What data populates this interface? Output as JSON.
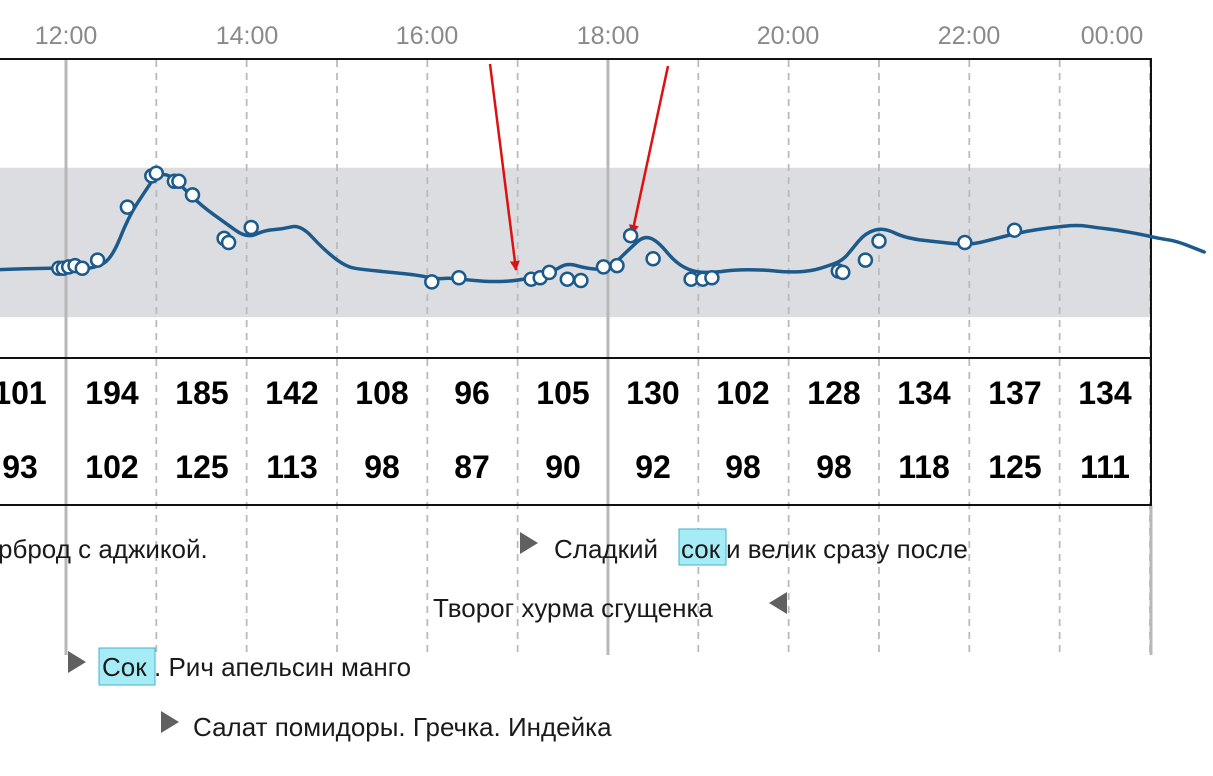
{
  "chart_data": {
    "type": "line",
    "xlabel": "",
    "ylabel": "",
    "x_axis": {
      "ticks": [
        "12:00",
        "14:00",
        "16:00",
        "18:00",
        "20:00",
        "22:00",
        "00:00"
      ],
      "range_hours": [
        11.25,
        24.6
      ]
    },
    "y_range": [
      40,
      260
    ],
    "target_range": [
      70,
      180
    ],
    "grid": true,
    "series": [
      {
        "x": [
          11.25,
          11.7,
          11.95,
          12.15,
          12.3,
          12.5,
          12.7,
          12.9,
          13.0,
          13.15,
          13.3,
          13.5,
          13.75,
          14.0,
          14.2,
          14.4,
          14.6,
          14.85,
          15.1,
          15.3,
          15.6,
          15.9,
          16.1,
          16.25,
          16.5,
          16.75,
          17.0,
          17.2,
          17.4,
          17.55,
          17.75,
          17.95,
          18.05,
          18.25,
          18.4,
          18.55,
          18.75,
          18.95,
          19.2,
          19.4,
          19.7,
          20.0,
          20.25,
          20.45,
          20.6,
          20.7,
          20.85,
          21.05,
          21.3,
          21.7,
          22.0,
          22.3,
          22.6,
          22.9,
          23.2,
          23.4,
          23.65,
          23.9,
          24.1,
          24.3,
          24.6
        ],
        "y": [
          105,
          106,
          106,
          106,
          106,
          112,
          145,
          165,
          175,
          175,
          165,
          152,
          140,
          128,
          134,
          135,
          138,
          120,
          107,
          105,
          103,
          101,
          98,
          99,
          97,
          96,
          97,
          100,
          104,
          110,
          106,
          105,
          108,
          121,
          130,
          126,
          110,
          103,
          103,
          105,
          105,
          103,
          104,
          108,
          112,
          120,
          132,
          136,
          128,
          125,
          123,
          128,
          133,
          136,
          138,
          136,
          134,
          131,
          128,
          126,
          118
        ]
      }
    ],
    "markers": {
      "x": [
        11.92,
        11.97,
        12.03,
        12.1,
        12.18,
        12.35,
        12.68,
        12.95,
        13.0,
        13.2,
        13.25,
        13.4,
        13.75,
        13.8,
        14.05,
        16.05,
        16.35,
        17.15,
        17.25,
        17.35,
        17.55,
        17.7,
        17.95,
        18.1,
        18.25,
        18.5,
        18.92,
        19.05,
        19.15,
        20.55,
        20.6,
        20.85,
        21.0,
        21.95,
        22.5
      ],
      "y": [
        106,
        106,
        107,
        108,
        106,
        112,
        151,
        174,
        176,
        170,
        170,
        160,
        128,
        125,
        136,
        96,
        99,
        98,
        99,
        103,
        98,
        97,
        107,
        108,
        130,
        113,
        98,
        98,
        99,
        104,
        103,
        112,
        126,
        125,
        134
      ]
    }
  },
  "table": {
    "row1": [
      "101",
      "194",
      "185",
      "142",
      "108",
      "96",
      "105",
      "130",
      "102",
      "128",
      "134",
      "137",
      "134"
    ],
    "row2": [
      "93",
      "102",
      "125",
      "113",
      "98",
      "87",
      "90",
      "92",
      "98",
      "98",
      "118",
      "125",
      "111"
    ]
  },
  "notes": [
    {
      "text_before": "рброд с аджикой.",
      "highlight": "",
      "text_after": ""
    },
    {
      "text_before": "Сладкий ",
      "highlight": "сок",
      "text_after": " и велик сразу после"
    },
    {
      "text_before": "Творог хурма сгущенка",
      "highlight": "",
      "text_after": ""
    },
    {
      "text_before": "",
      "highlight": "Сок",
      "text_after": ". Рич апельсин манго"
    },
    {
      "text_before": "Салат помидоры. Гречка. Индейка",
      "highlight": "",
      "text_after": ""
    }
  ],
  "colors": {
    "line": "#1d5a8c",
    "band": "#dcdde0",
    "grid": "#bbbbbb",
    "solid_grid": "#b8b8b8",
    "arrow": "#dd1111",
    "highlight": "#a6ecf7",
    "highlight_border": "#44b2c8",
    "time_label": "#8a8a8a",
    "triangle": "#606060"
  }
}
